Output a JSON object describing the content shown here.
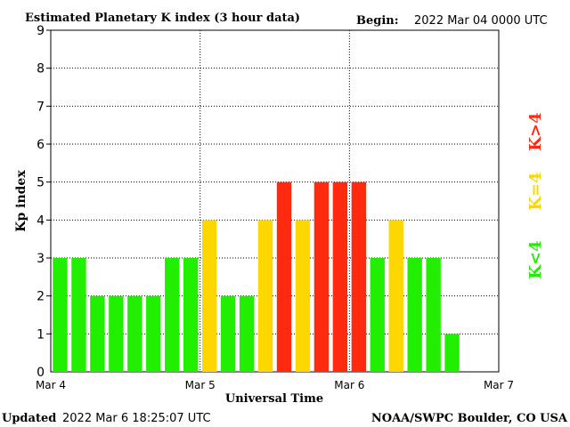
{
  "header": {
    "title": "Estimated Planetary K index (3 hour data)",
    "begin_label": "Begin:",
    "begin_value": "2022 Mar 04 0000 UTC"
  },
  "footer": {
    "updated_label": "Updated",
    "updated_value": "2022 Mar  6 18:25:07 UTC",
    "source": "NOAA/SWPC Boulder, CO USA"
  },
  "legend": {
    "low": "K<4",
    "mid": "K=4",
    "high": "K>4"
  },
  "colors": {
    "low": "#22ee00",
    "mid": "#ffd700",
    "high": "#ff2a10",
    "grid": "#000000"
  },
  "chart_data": {
    "type": "bar",
    "title": "Estimated Planetary K index (3 hour data)",
    "xlabel": "Universal Time",
    "ylabel": "Kp index",
    "ylim": [
      0,
      9
    ],
    "yticks": [
      "0",
      "1",
      "2",
      "3",
      "4",
      "5",
      "6",
      "7",
      "8",
      "9"
    ],
    "xticks": [
      "Mar 4",
      "Mar 5",
      "Mar 6",
      "Mar 7"
    ],
    "interval_hours": 3,
    "grid": true,
    "categories": [
      "Mar 4 00",
      "Mar 4 03",
      "Mar 4 06",
      "Mar 4 09",
      "Mar 4 12",
      "Mar 4 15",
      "Mar 4 18",
      "Mar 4 21",
      "Mar 5 00",
      "Mar 5 03",
      "Mar 5 06",
      "Mar 5 09",
      "Mar 5 12",
      "Mar 5 15",
      "Mar 5 18",
      "Mar 5 21",
      "Mar 6 00",
      "Mar 6 03",
      "Mar 6 06",
      "Mar 6 09",
      "Mar 6 12",
      "Mar 6 15"
    ],
    "values": [
      3,
      3,
      2,
      2,
      2,
      2,
      3,
      3,
      4,
      2,
      2,
      4,
      5,
      4,
      5,
      5,
      5,
      3,
      4,
      3,
      3,
      1
    ]
  }
}
